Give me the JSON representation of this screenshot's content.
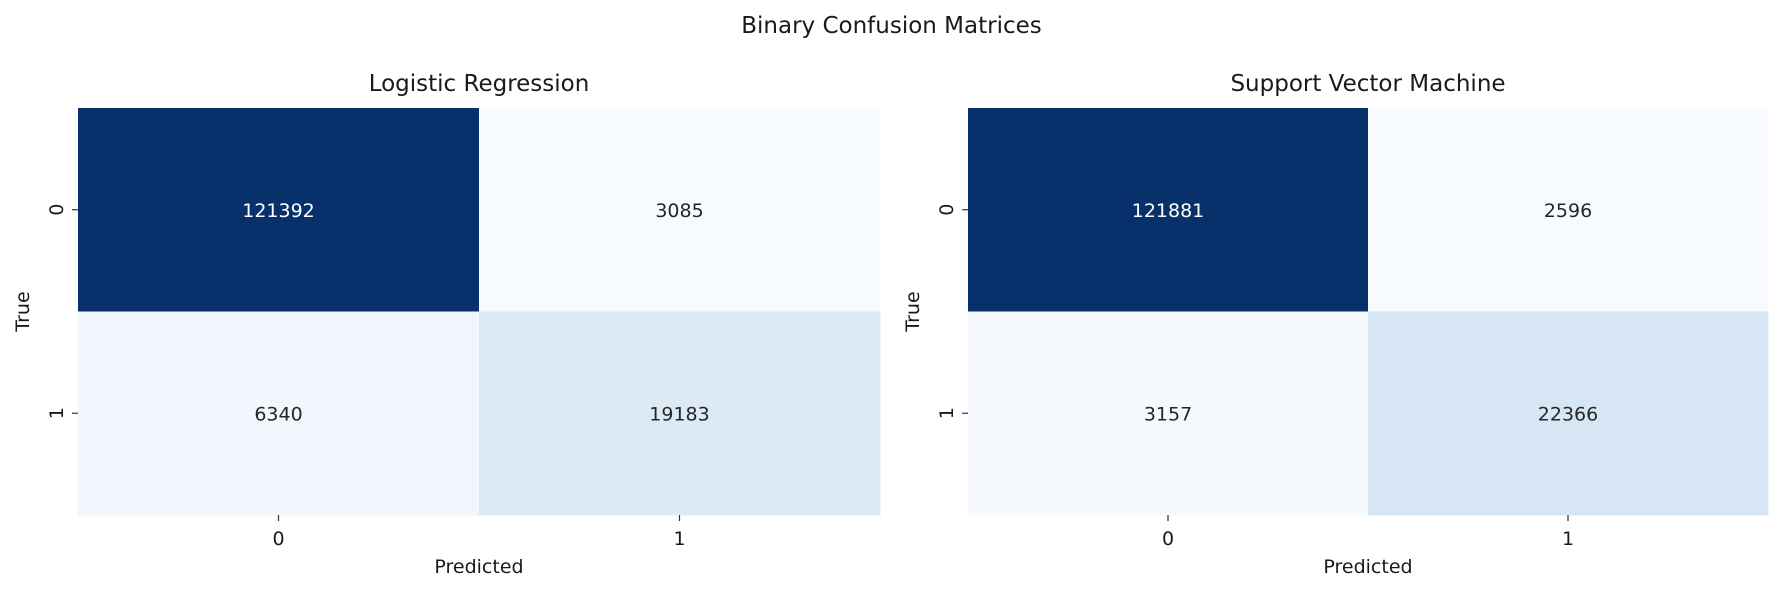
{
  "figure": {
    "title": "Binary Confusion Matrices"
  },
  "chart_data": [
    {
      "type": "heatmap",
      "title": "Logistic Regression",
      "xlabel": "Predicted",
      "ylabel": "True",
      "x_categories": [
        "0",
        "1"
      ],
      "y_categories": [
        "0",
        "1"
      ],
      "values": [
        [
          121392,
          3085
        ],
        [
          6340,
          19183
        ]
      ],
      "colormap": "Blues",
      "colorbar": false
    },
    {
      "type": "heatmap",
      "title": "Support Vector Machine",
      "xlabel": "Predicted",
      "ylabel": "True",
      "x_categories": [
        "0",
        "1"
      ],
      "y_categories": [
        "0",
        "1"
      ],
      "values": [
        [
          121881,
          2596
        ],
        [
          3157,
          22366
        ]
      ],
      "colormap": "Blues",
      "colorbar": false
    }
  ]
}
